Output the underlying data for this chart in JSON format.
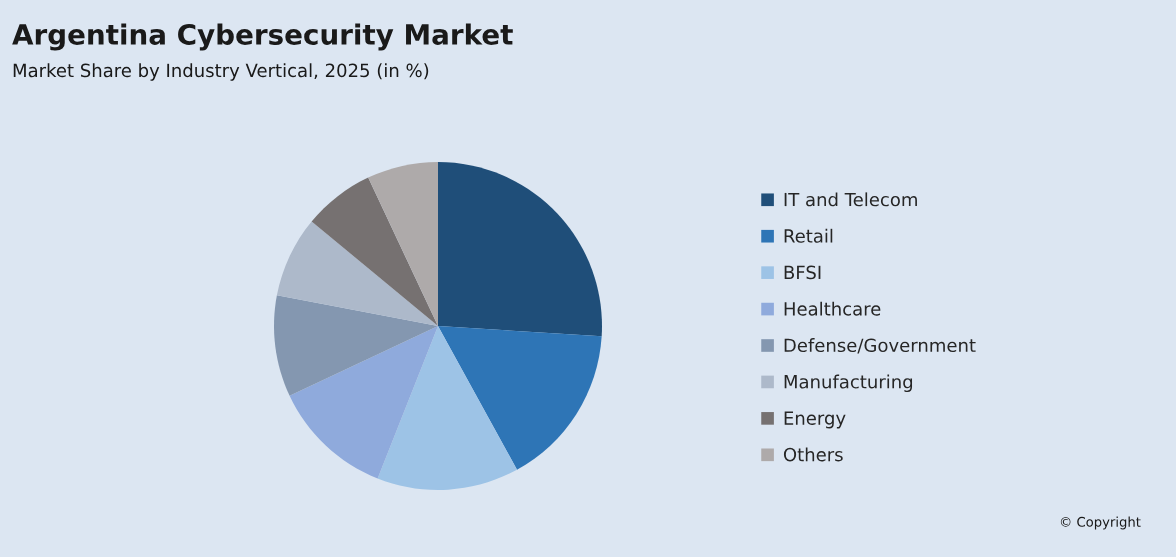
{
  "chart_data": {
    "type": "pie",
    "title": "Argentina Cybersecurity Market",
    "subtitle": "Market Share by Industry Vertical, 2025 (in %)",
    "categories": [
      "IT and Telecom",
      "Retail",
      "BFSI",
      "Healthcare",
      "Defense/Government",
      "Manufacturing",
      "Energy",
      "Others"
    ],
    "values": [
      26,
      16,
      14,
      12,
      10,
      8,
      7,
      7
    ],
    "colors": [
      "#1f4e79",
      "#2e75b6",
      "#9dc3e6",
      "#8faadc",
      "#8497b0",
      "#adb9ca",
      "#767171",
      "#aeaaaa"
    ],
    "legend": "right",
    "annotations": [
      "© Copyright"
    ]
  }
}
